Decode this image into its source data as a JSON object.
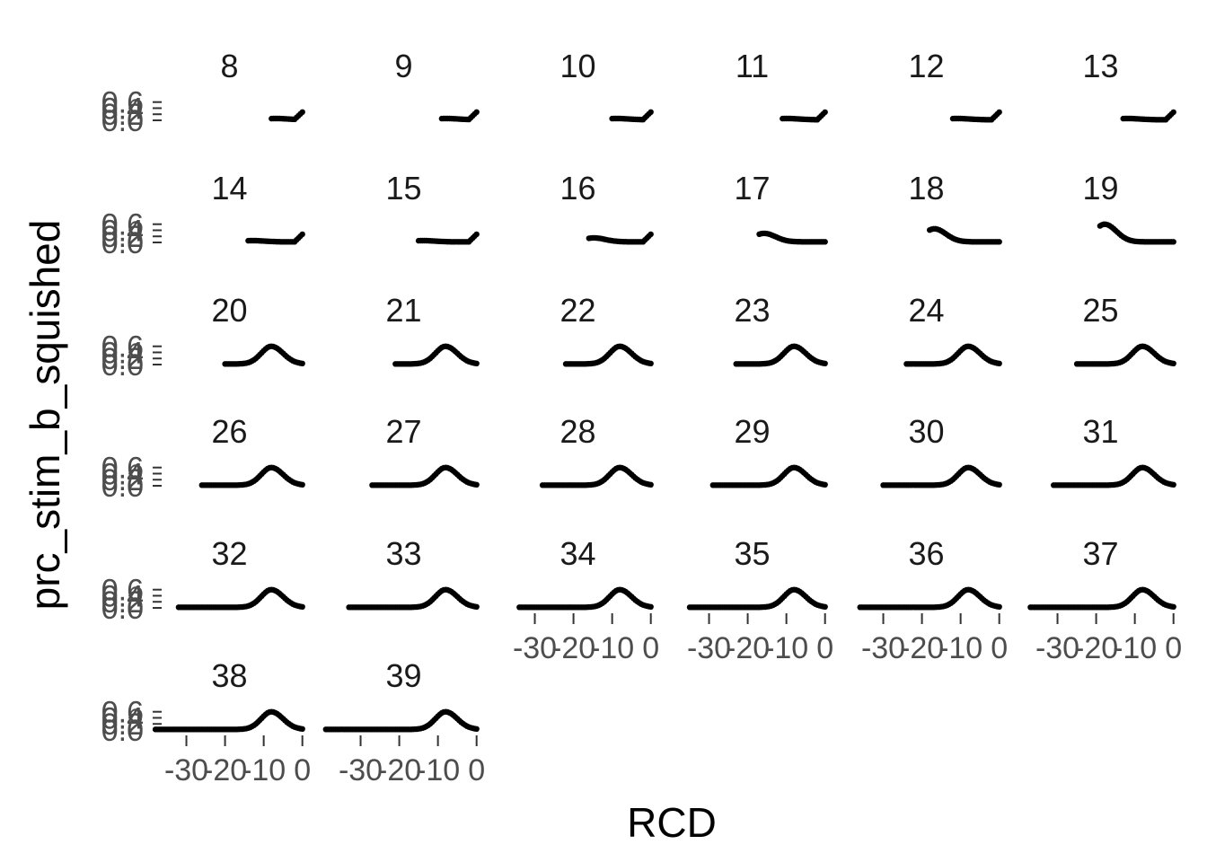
{
  "chart_data": {
    "type": "scatter",
    "layout": "facet-grid",
    "xlabel": "RCD",
    "ylabel": "prc_stim_b_squished",
    "x_ticks": [
      -30,
      -20,
      -10,
      0
    ],
    "x_tick_labels": [
      "-30",
      "-20",
      "-10",
      "0"
    ],
    "y_ticks": [
      0.0,
      0.2,
      0.4,
      0.6
    ],
    "y_tick_labels": [
      "0.0",
      "0.2",
      "0.4",
      "0.6"
    ],
    "xlim": [
      -35,
      1
    ],
    "ylim": [
      0,
      0.65
    ],
    "grid": false,
    "legend": "none",
    "point_color": "#000000",
    "panels": [
      {
        "label": "8",
        "x_min": -8
      },
      {
        "label": "9",
        "x_min": -9
      },
      {
        "label": "10",
        "x_min": -10
      },
      {
        "label": "11",
        "x_min": -11
      },
      {
        "label": "12",
        "x_min": -12
      },
      {
        "label": "13",
        "x_min": -13
      },
      {
        "label": "14",
        "x_min": -14
      },
      {
        "label": "15",
        "x_min": -15
      },
      {
        "label": "16",
        "x_min": -16
      },
      {
        "label": "17",
        "x_min": -17
      },
      {
        "label": "18",
        "x_min": -18
      },
      {
        "label": "19",
        "x_min": -19
      },
      {
        "label": "20",
        "x_min": -20
      },
      {
        "label": "21",
        "x_min": -21
      },
      {
        "label": "22",
        "x_min": -22
      },
      {
        "label": "23",
        "x_min": -23
      },
      {
        "label": "24",
        "x_min": -24
      },
      {
        "label": "25",
        "x_min": -25
      },
      {
        "label": "26",
        "x_min": -26
      },
      {
        "label": "27",
        "x_min": -27
      },
      {
        "label": "28",
        "x_min": -28
      },
      {
        "label": "29",
        "x_min": -29
      },
      {
        "label": "30",
        "x_min": -30
      },
      {
        "label": "31",
        "x_min": -31
      },
      {
        "label": "32",
        "x_min": -32
      },
      {
        "label": "33",
        "x_min": -33
      },
      {
        "label": "34",
        "x_min": -34
      },
      {
        "label": "35",
        "x_min": -35
      },
      {
        "label": "36",
        "x_min": -36
      },
      {
        "label": "37",
        "x_min": -37
      },
      {
        "label": "38",
        "x_min": -38
      },
      {
        "label": "39",
        "x_min": -39
      }
    ]
  }
}
